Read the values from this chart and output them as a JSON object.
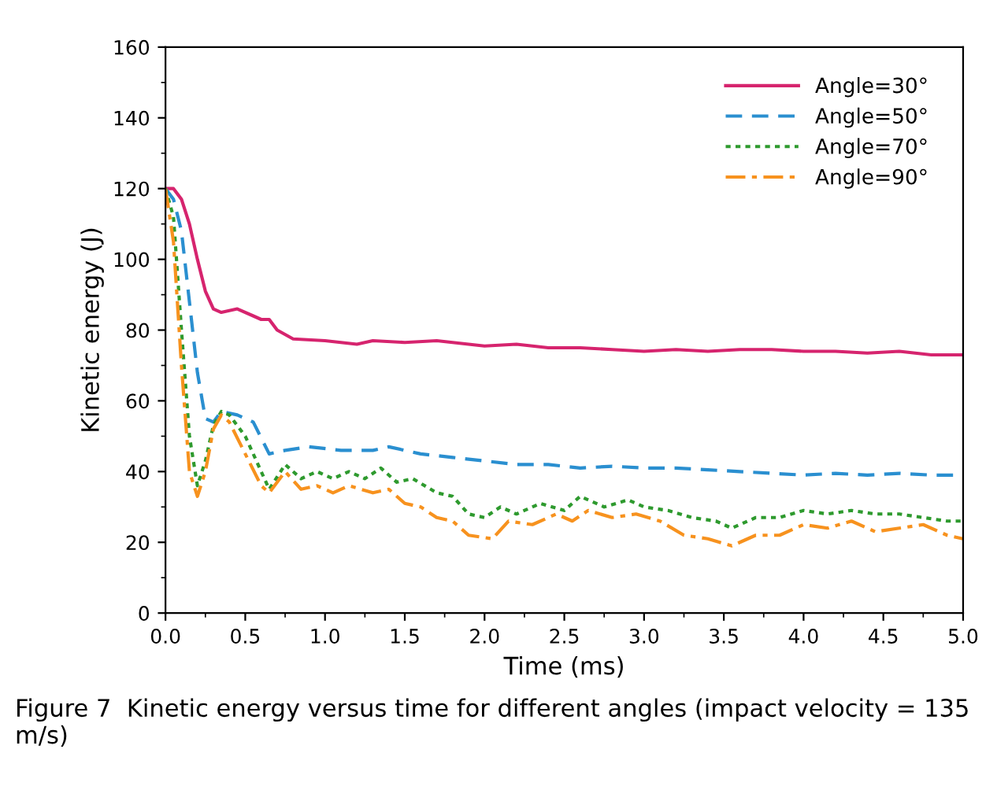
{
  "chart_data": {
    "type": "line",
    "xlabel": "Time (ms)",
    "ylabel": "Kinetic energy (J)",
    "xlim": [
      0,
      5
    ],
    "ylim": [
      0,
      160
    ],
    "xticks": [
      {
        "value": 0,
        "label": "0.0"
      },
      {
        "value": 0.5,
        "label": "0.5"
      },
      {
        "value": 1,
        "label": "1.0"
      },
      {
        "value": 1.5,
        "label": "1.5"
      },
      {
        "value": 2,
        "label": "2.0"
      },
      {
        "value": 2.5,
        "label": "2.5"
      },
      {
        "value": 3,
        "label": "3.0"
      },
      {
        "value": 3.5,
        "label": "3.5"
      },
      {
        "value": 4,
        "label": "4.0"
      },
      {
        "value": 4.5,
        "label": "4.5"
      },
      {
        "value": 5,
        "label": "5.0"
      }
    ],
    "yticks": [
      0,
      20,
      40,
      60,
      80,
      100,
      120,
      140,
      160
    ],
    "legend": "top right",
    "grid": false,
    "annotations": [
      "Figure 7  Kinetic energy versus time for different angles (impact velocity = 135 m/s)"
    ],
    "series": [
      {
        "name": "Angle=30°",
        "color": "#d6246e",
        "line_style": "solid",
        "x": [
          0,
          0.05,
          0.1,
          0.15,
          0.2,
          0.25,
          0.3,
          0.35,
          0.45,
          0.55,
          0.6,
          0.65,
          0.7,
          0.8,
          1.0,
          1.2,
          1.3,
          1.5,
          1.7,
          1.9,
          2.0,
          2.2,
          2.4,
          2.6,
          2.8,
          3.0,
          3.2,
          3.4,
          3.6,
          3.8,
          4.0,
          4.2,
          4.4,
          4.6,
          4.8,
          5.0
        ],
        "values": [
          120,
          120,
          117,
          110,
          100,
          91,
          86,
          85,
          86,
          84,
          83,
          83,
          80,
          77.5,
          77,
          76,
          77,
          76.5,
          77,
          76,
          75.5,
          76,
          75,
          75,
          74.5,
          74,
          74.5,
          74,
          74.5,
          74.5,
          74,
          74,
          73.5,
          74,
          73,
          73
        ]
      },
      {
        "name": "Angle=50°",
        "color": "#2a8fd0",
        "line_style": "dashed",
        "x": [
          0,
          0.05,
          0.1,
          0.15,
          0.2,
          0.25,
          0.3,
          0.35,
          0.45,
          0.55,
          0.65,
          0.75,
          0.9,
          1.1,
          1.3,
          1.4,
          1.6,
          1.8,
          2.0,
          2.2,
          2.4,
          2.6,
          2.8,
          3.0,
          3.2,
          3.4,
          3.6,
          3.8,
          4.0,
          4.2,
          4.4,
          4.6,
          4.8,
          5.0
        ],
        "values": [
          120,
          117,
          108,
          88,
          68,
          55,
          54,
          57,
          56,
          54,
          45,
          46,
          47,
          46,
          46,
          47,
          45,
          44,
          43,
          42,
          42,
          41,
          41.5,
          41,
          41,
          40.5,
          40,
          39.5,
          39,
          39.5,
          39,
          39.5,
          39,
          39
        ]
      },
      {
        "name": "Angle=70°",
        "color": "#2e9a2e",
        "line_style": "dotted",
        "x": [
          0,
          0.05,
          0.1,
          0.15,
          0.2,
          0.25,
          0.3,
          0.35,
          0.4,
          0.5,
          0.6,
          0.65,
          0.75,
          0.85,
          0.95,
          1.05,
          1.15,
          1.25,
          1.35,
          1.45,
          1.55,
          1.7,
          1.8,
          1.9,
          2.0,
          2.1,
          2.2,
          2.35,
          2.5,
          2.6,
          2.75,
          2.9,
          3.0,
          3.15,
          3.3,
          3.45,
          3.55,
          3.7,
          3.85,
          4.0,
          4.15,
          4.3,
          4.45,
          4.6,
          4.75,
          4.9,
          5.0
        ],
        "values": [
          120,
          112,
          80,
          50,
          36,
          43,
          53,
          57,
          56,
          50,
          40,
          35,
          42,
          38,
          40,
          38,
          40,
          38,
          41,
          37,
          38,
          34,
          33,
          28,
          27,
          30,
          28,
          31,
          29,
          33,
          30,
          32,
          30,
          29,
          27,
          26,
          24,
          27,
          27,
          29,
          28,
          29,
          28,
          28,
          27,
          26,
          26
        ]
      },
      {
        "name": "Angle=90°",
        "color": "#f7921e",
        "line_style": "dashdot",
        "x": [
          0,
          0.05,
          0.1,
          0.15,
          0.2,
          0.25,
          0.3,
          0.35,
          0.4,
          0.5,
          0.6,
          0.65,
          0.75,
          0.85,
          0.95,
          1.05,
          1.15,
          1.3,
          1.4,
          1.5,
          1.6,
          1.7,
          1.8,
          1.9,
          2.05,
          2.15,
          2.3,
          2.45,
          2.55,
          2.65,
          2.8,
          2.95,
          3.1,
          3.25,
          3.4,
          3.55,
          3.7,
          3.85,
          4.0,
          4.15,
          4.3,
          4.45,
          4.6,
          4.75,
          4.9,
          5.0
        ],
        "values": [
          120,
          105,
          70,
          40,
          33,
          40,
          52,
          56,
          54,
          45,
          36,
          34,
          40,
          35,
          36,
          34,
          36,
          34,
          35,
          31,
          30,
          27,
          26,
          22,
          21,
          26,
          25,
          28,
          26,
          29,
          27,
          28,
          26,
          22,
          21,
          19,
          22,
          22,
          25,
          24,
          26,
          23,
          24,
          25,
          22,
          21
        ]
      }
    ]
  }
}
